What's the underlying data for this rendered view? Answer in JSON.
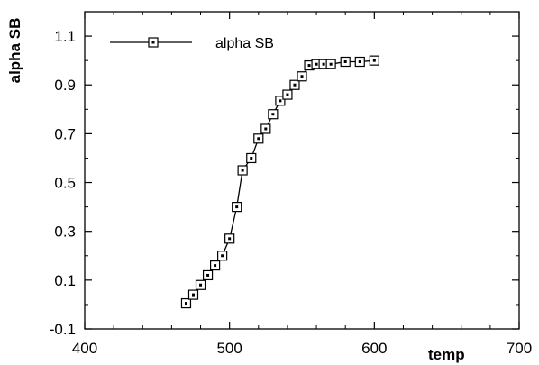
{
  "chart_data": {
    "type": "line",
    "title": "",
    "xlabel": "temp",
    "ylabel": "alpha SB",
    "xlim": [
      400,
      700
    ],
    "ylim": [
      -0.1,
      1.2
    ],
    "xticks": [
      400,
      500,
      600,
      700
    ],
    "yticks": [
      -0.1,
      0.1,
      0.3,
      0.5,
      0.7,
      0.9,
      1.1
    ],
    "xtick_labels": [
      "400",
      "500",
      "600",
      "700"
    ],
    "ytick_labels": [
      "-0.1",
      "0.1",
      "0.3",
      "0.5",
      "0.7",
      "0.9",
      "1.1"
    ],
    "legend_position": "top-left",
    "grid": false,
    "marker": "square-dot",
    "series": [
      {
        "name": "alpha SB",
        "color": "#000000",
        "x": [
          470,
          475,
          480,
          485,
          490,
          495,
          500,
          505,
          509,
          515,
          520,
          525,
          530,
          535,
          540,
          545,
          550,
          555,
          560,
          565,
          570,
          580,
          590,
          600
        ],
        "y": [
          0.005,
          0.04,
          0.08,
          0.12,
          0.16,
          0.2,
          0.27,
          0.4,
          0.55,
          0.6,
          0.68,
          0.72,
          0.78,
          0.835,
          0.86,
          0.9,
          0.935,
          0.98,
          0.985,
          0.985,
          0.985,
          0.995,
          0.995,
          1.0
        ]
      }
    ]
  }
}
